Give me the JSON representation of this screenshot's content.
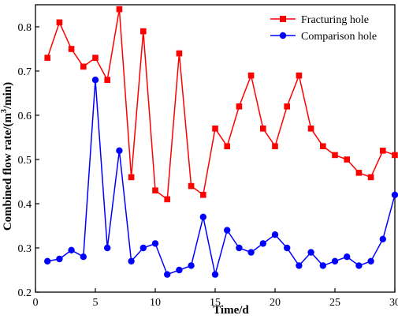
{
  "chart_data": {
    "type": "line",
    "xlabel": "Time/d",
    "ylabel_main": "Combined flow rate/(m",
    "ylabel_sup": "3",
    "ylabel_tail": "/min)",
    "xlim": [
      0,
      30
    ],
    "ylim": [
      0.2,
      0.85
    ],
    "xticks": [
      0,
      5,
      10,
      15,
      20,
      25,
      30
    ],
    "yticks": [
      0.2,
      0.3,
      0.4,
      0.5,
      0.6,
      0.7,
      0.8
    ],
    "grid": false,
    "legend_position": "top-right",
    "x": [
      1,
      2,
      3,
      4,
      5,
      6,
      7,
      8,
      9,
      10,
      11,
      12,
      13,
      14,
      15,
      16,
      17,
      18,
      19,
      20,
      21,
      22,
      23,
      24,
      25,
      26,
      27,
      28,
      29,
      30
    ],
    "series": [
      {
        "name": "Fracturing hole",
        "color": "#ff0000",
        "marker": "square",
        "values": [
          0.73,
          0.81,
          0.75,
          0.71,
          0.73,
          0.68,
          0.84,
          0.46,
          0.79,
          0.43,
          0.41,
          0.74,
          0.44,
          0.42,
          0.57,
          0.53,
          0.62,
          0.69,
          0.57,
          0.53,
          0.62,
          0.69,
          0.57,
          0.53,
          0.51,
          0.5,
          0.47,
          0.46,
          0.52,
          0.51
        ]
      },
      {
        "name": "Comparison hole",
        "color": "#0000ff",
        "marker": "circle",
        "values": [
          0.27,
          0.275,
          0.295,
          0.28,
          0.68,
          0.3,
          0.52,
          0.27,
          0.3,
          0.31,
          0.24,
          0.25,
          0.26,
          0.37,
          0.24,
          0.34,
          0.3,
          0.29,
          0.31,
          0.33,
          0.3,
          0.26,
          0.29,
          0.26,
          0.27,
          0.28,
          0.26,
          0.27,
          0.32,
          0.42
        ]
      }
    ]
  }
}
